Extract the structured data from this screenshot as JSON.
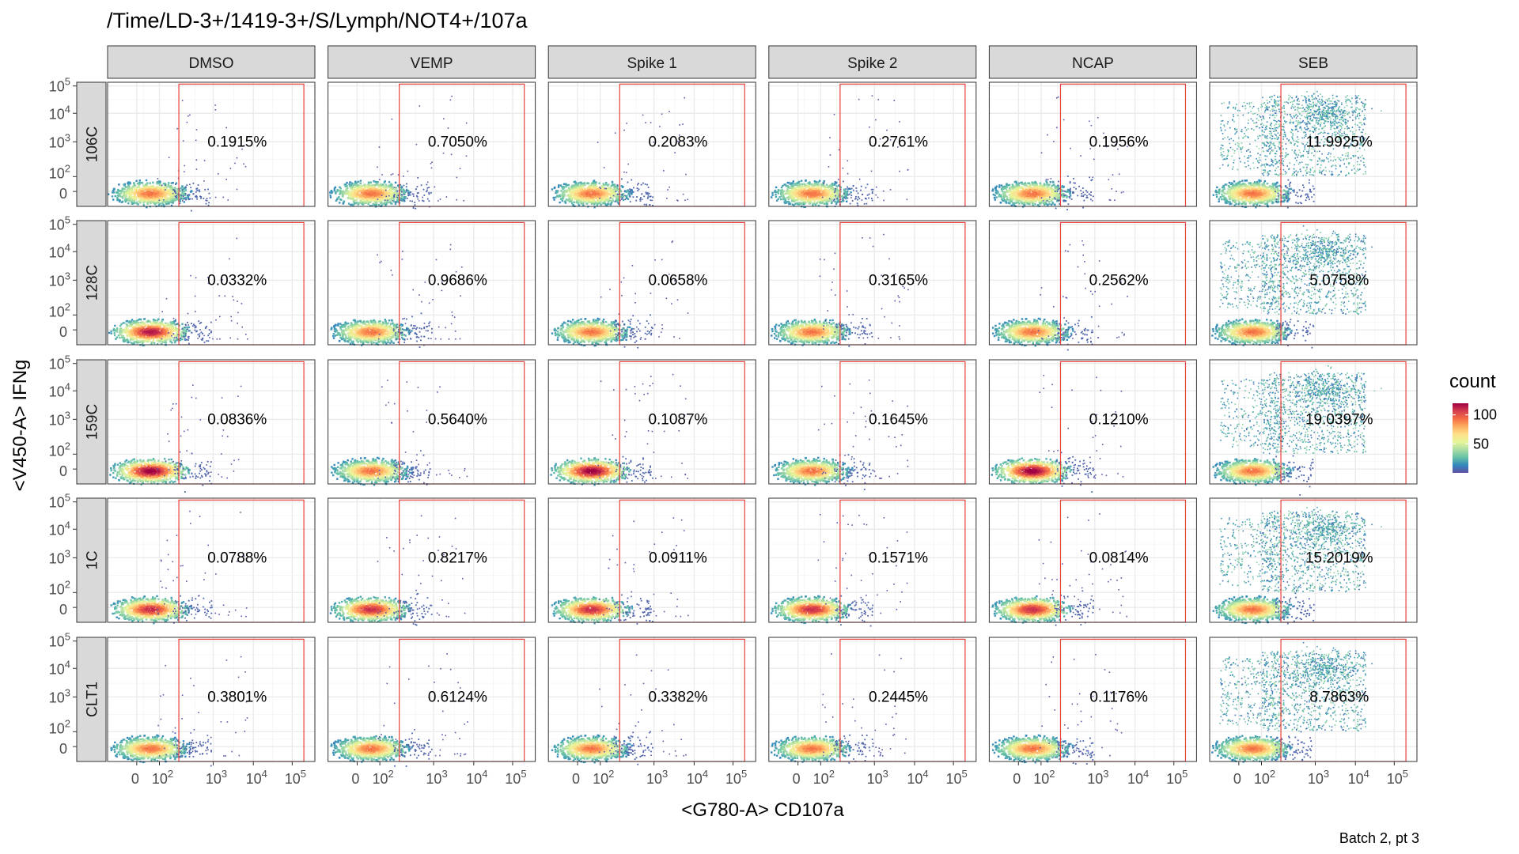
{
  "chart_data": {
    "type": "heatmap",
    "title": "/Time/LD-3+/1419-3+/S/Lymph/NOT4+/107a",
    "xlabel": "<G780-A> CD107a",
    "ylabel": "<V450-A> IFNg",
    "caption": "Batch 2, pt 3",
    "columns": [
      "DMSO",
      "VEMP",
      "Spike 1",
      "Spike 2",
      "NCAP",
      "SEB"
    ],
    "rows": [
      "106C",
      "128C",
      "159C",
      "1C",
      "CLT1"
    ],
    "x_ticks": [
      "0",
      "10^2",
      "10^3",
      "10^4",
      "10^5"
    ],
    "y_ticks": [
      "0",
      "10^2",
      "10^3",
      "10^4",
      "10^5"
    ],
    "legend": {
      "title": "count",
      "ticks": [
        "50",
        "100"
      ],
      "range": [
        0,
        120
      ],
      "placement": "right"
    },
    "gate": {
      "x_range": [
        "10^2.45",
        "10^5.2"
      ],
      "y_range": [
        "0",
        "10^5.2"
      ],
      "color": "#e8403a"
    },
    "gate_percentages": [
      [
        "0.1915%",
        "0.7050%",
        "0.2083%",
        "0.2761%",
        "0.1956%",
        "11.9925%"
      ],
      [
        "0.0332%",
        "0.9686%",
        "0.0658%",
        "0.3165%",
        "0.2562%",
        "5.0758%"
      ],
      [
        "0.0836%",
        "0.5640%",
        "0.1087%",
        "0.1645%",
        "0.1210%",
        "19.0397%"
      ],
      [
        "0.0788%",
        "0.8217%",
        "0.0911%",
        "0.1571%",
        "0.0814%",
        "15.2019%"
      ],
      [
        "0.3801%",
        "0.6124%",
        "0.3382%",
        "0.2445%",
        "0.1176%",
        "8.7863%"
      ]
    ],
    "palette": [
      "#5e4fa2",
      "#3288bd",
      "#66c2a5",
      "#abdda4",
      "#e6f598",
      "#fee08b",
      "#fdae61",
      "#f46d43",
      "#d53e4f",
      "#9e0142"
    ]
  }
}
